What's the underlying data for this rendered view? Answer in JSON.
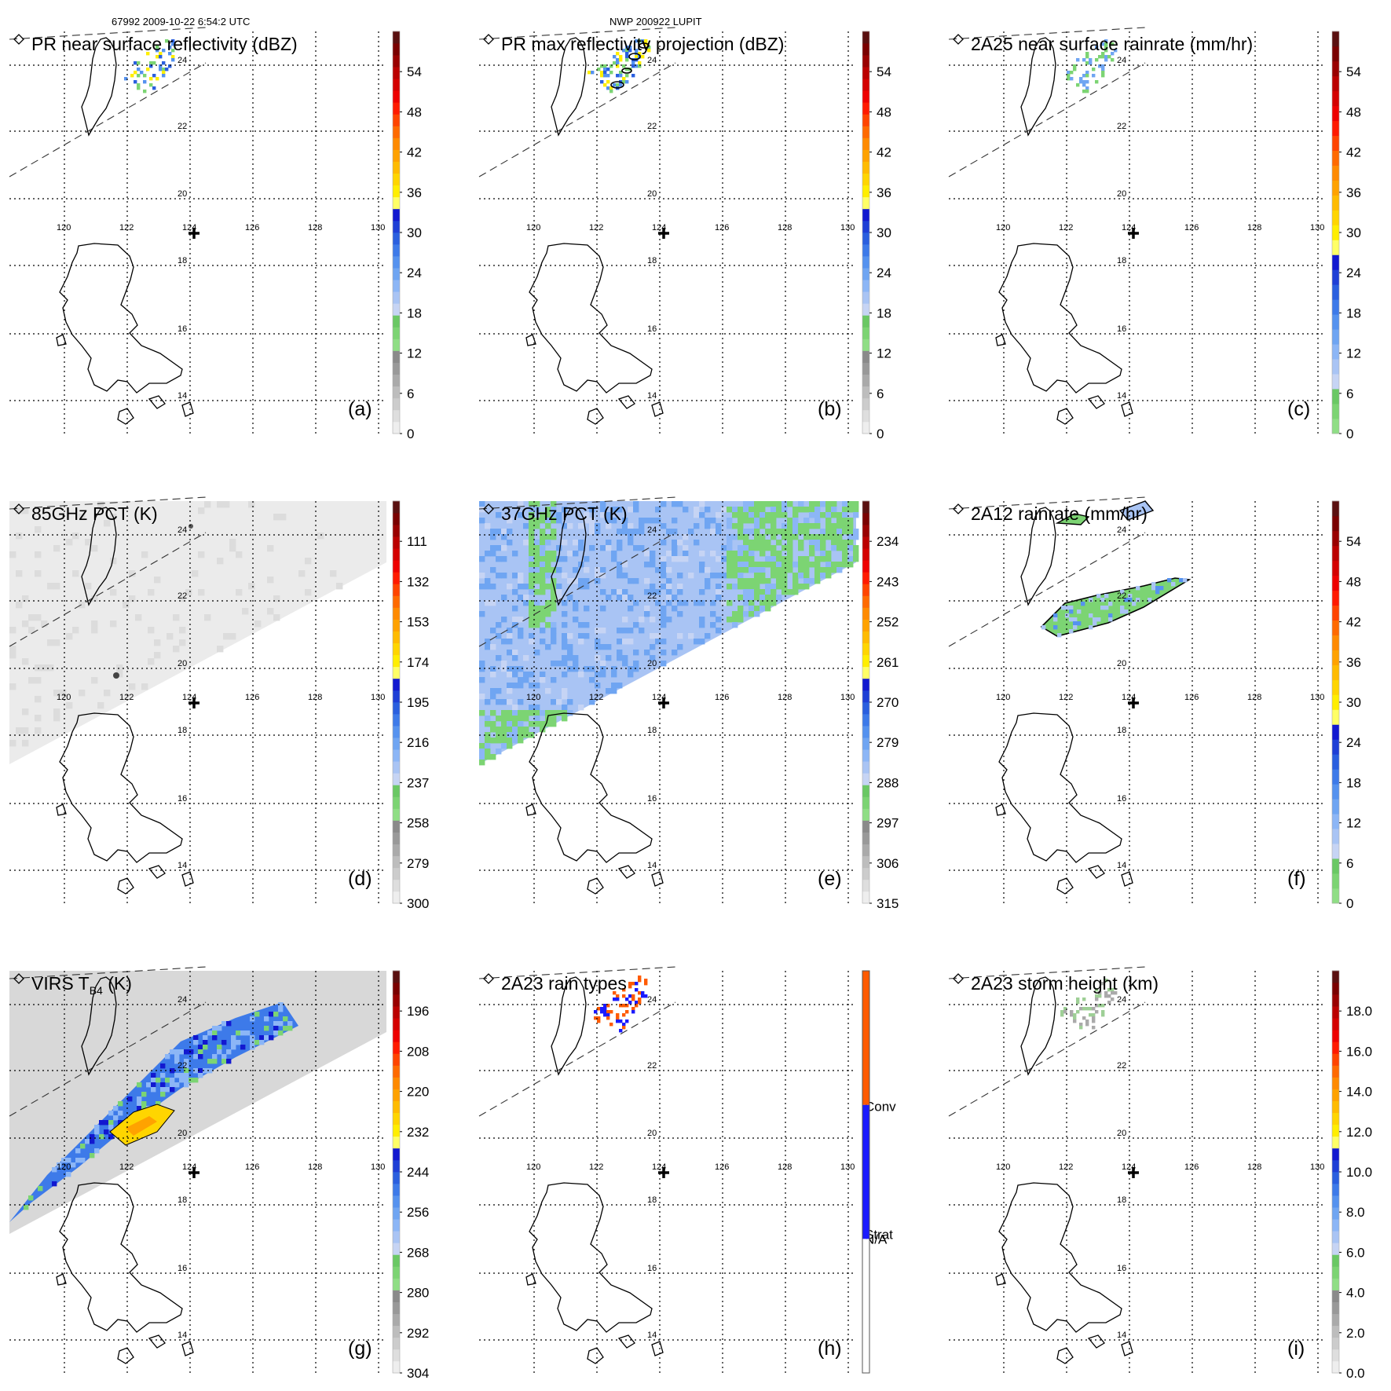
{
  "header": {
    "orbit_time": "67992 2009-10-22 6:54:2 UTC",
    "storm": "NWP 200922 LUPIT"
  },
  "colors": {
    "gray": [
      "#eeeeee",
      "#dedede",
      "#cccccc",
      "#bdbdbd",
      "#aaaaaa",
      "#999999",
      "#8a8a8a"
    ],
    "green": [
      "#8fde85",
      "#7cd473",
      "#6ac864"
    ],
    "blue": [
      "#c6d4f4",
      "#a9c4f4",
      "#8cb6f6",
      "#6fa5f2",
      "#5592ef",
      "#3d7ae9",
      "#2a5fdf",
      "#1e3fd6",
      "#1218d0"
    ],
    "yellow": [
      "#ffff66",
      "#ffee00",
      "#ffd500"
    ],
    "orange": [
      "#ffbb00",
      "#ffa200",
      "#ff8a00"
    ],
    "red": [
      "#ff6a00",
      "#ff4400",
      "#ff1a00",
      "#ee0000",
      "#d40000",
      "#bb0000",
      "#990000",
      "#7a0000",
      "#5a1010"
    ],
    "raintype_conv": "#ff5a00",
    "raintype_strat": "#1a1aff",
    "raintype_na": "#ffffff"
  },
  "map": {
    "lon_labels": [
      "120",
      "122",
      "124",
      "126",
      "128",
      "130"
    ],
    "lat_labels": [
      "24",
      "22",
      "20",
      "18",
      "16",
      "14"
    ]
  },
  "chart_data": [
    {
      "id": "a",
      "type": "heatmap",
      "title": "PR near surface reflectivity (dBZ)",
      "panel_label": "(a)",
      "colorbar_ticks": [
        "0",
        "6",
        "12",
        "18",
        "24",
        "30",
        "36",
        "42",
        "48",
        "54"
      ],
      "scheme": "refl",
      "field": "pr_nsr"
    },
    {
      "id": "b",
      "type": "heatmap",
      "title": "PR max reflectivity projection (dBZ)",
      "panel_label": "(b)",
      "colorbar_ticks": [
        "0",
        "6",
        "12",
        "18",
        "24",
        "30",
        "36",
        "42",
        "48",
        "54"
      ],
      "scheme": "refl",
      "field": "pr_max"
    },
    {
      "id": "c",
      "type": "heatmap",
      "title": "2A25 near surface rainrate (mm/hr)",
      "panel_label": "(c)",
      "colorbar_ticks": [
        "0",
        "6",
        "12",
        "18",
        "24",
        "30",
        "36",
        "42",
        "48",
        "54"
      ],
      "scheme": "rain",
      "field": "pr_rain"
    },
    {
      "id": "d",
      "type": "heatmap",
      "title": "85GHz PCT (K)",
      "panel_label": "(d)",
      "colorbar_ticks": [
        "300",
        "279",
        "258",
        "237",
        "216",
        "195",
        "174",
        "153",
        "132",
        "111"
      ],
      "scheme": "refl",
      "field": "pct85"
    },
    {
      "id": "e",
      "type": "heatmap",
      "title": "37GHz PCT (K)",
      "panel_label": "(e)",
      "colorbar_ticks": [
        "315",
        "306",
        "297",
        "288",
        "279",
        "270",
        "261",
        "252",
        "243",
        "234"
      ],
      "scheme": "refl",
      "field": "pct37"
    },
    {
      "id": "f",
      "type": "heatmap",
      "title": "2A12 rainrate (mm/hr)",
      "panel_label": "(f)",
      "colorbar_ticks": [
        "0",
        "6",
        "12",
        "18",
        "24",
        "30",
        "36",
        "42",
        "48",
        "54"
      ],
      "scheme": "rain",
      "field": "tmi_rain"
    },
    {
      "id": "g",
      "type": "heatmap",
      "title": "VIRS T",
      "title_sub": "B4",
      "title_after": " (K)",
      "panel_label": "(g)",
      "colorbar_ticks": [
        "304",
        "292",
        "280",
        "268",
        "256",
        "244",
        "232",
        "220",
        "208",
        "196"
      ],
      "scheme": "refl",
      "field": "virs"
    },
    {
      "id": "h",
      "type": "heatmap",
      "title": "2A23 rain types",
      "panel_label": "(h)",
      "colorbar_ticks": [
        "N/A",
        "Strat",
        "Conv"
      ],
      "scheme": "types",
      "field": "raintype"
    },
    {
      "id": "i",
      "type": "heatmap",
      "title": "2A23 storm height (km)",
      "panel_label": "(i)",
      "colorbar_ticks": [
        "0.0",
        "2.0",
        "4.0",
        "6.0",
        "8.0",
        "10.0",
        "12.0",
        "14.0",
        "16.0",
        "18.0"
      ],
      "scheme": "refl",
      "field": "storm_height"
    }
  ]
}
